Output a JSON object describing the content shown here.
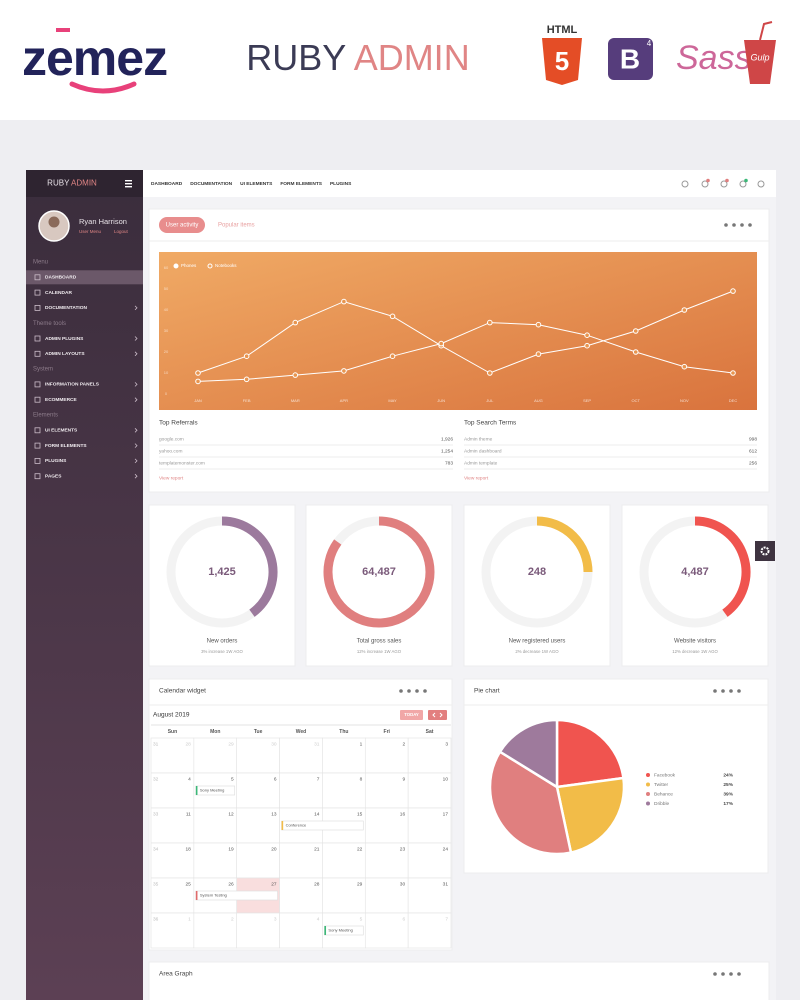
{
  "banner": {
    "logo": "zemez",
    "product_first": "RUBY",
    "product_second": "ADMIN",
    "badges": {
      "html": "HTML",
      "html_version": "5",
      "bootstrap": "B",
      "bootstrap_version": "4",
      "sass": "Sass",
      "gulp": "Gulp"
    }
  },
  "sidebar": {
    "brand_first": "RUBY",
    "brand_second": "ADMIN",
    "user": {
      "name": "Ryan Harrison",
      "links": [
        "User Menu",
        "Logout"
      ]
    },
    "sections": [
      {
        "title": "Menu",
        "items": [
          "DASHBOARD",
          "CALENDAR",
          "DOCUMENTATION"
        ]
      },
      {
        "title": "Theme tools",
        "items": [
          "ADMIN PLUGINS",
          "ADMIN LAYOUTS"
        ]
      },
      {
        "title": "System",
        "items": [
          "INFORMATION PANELS",
          "ECOMMERCE"
        ]
      },
      {
        "title": "Elements",
        "items": [
          "UI ELEMENTS",
          "FORM ELEMENTS",
          "PLUGINS",
          "PAGES"
        ]
      }
    ]
  },
  "topnav": [
    "DASHBOARD",
    "DOCUMENTATION",
    "UI ELEMENTS",
    "FORM ELEMENTS",
    "PLUGINS"
  ],
  "activity": {
    "tabs": [
      "User activity",
      "Popular items"
    ],
    "tables": [
      {
        "title": "Top Referrals",
        "rows": [
          [
            "google.com",
            "1,926"
          ],
          [
            "yahoo.com",
            "1,254"
          ],
          [
            "templatemonster.com",
            "783"
          ]
        ],
        "link": "View report"
      },
      {
        "title": "Top Search Terms",
        "rows": [
          [
            "Admin theme",
            "998"
          ],
          [
            "Admin dashboard",
            "612"
          ],
          [
            "Admin template",
            "256"
          ]
        ],
        "link": "View report"
      }
    ]
  },
  "chart_data": [
    {
      "type": "line",
      "categories": [
        "JAN",
        "FEB",
        "MAR",
        "APR",
        "MAY",
        "JUN",
        "JUL",
        "AUG",
        "SEP",
        "OCT",
        "NOV",
        "DEC"
      ],
      "series": [
        {
          "name": "Phones",
          "color": "#ffffff",
          "values": [
            10,
            18,
            34,
            44,
            37,
            23,
            10,
            19,
            23,
            30,
            40,
            49
          ]
        },
        {
          "name": "Notebooks",
          "color": "#ffffff",
          "values": [
            6,
            7,
            9,
            11,
            18,
            24,
            34,
            33,
            28,
            20,
            13,
            10
          ]
        }
      ],
      "ylim": [
        0,
        70
      ],
      "yticks": [
        0,
        10,
        20,
        30,
        40,
        50,
        60
      ],
      "grid": false
    },
    {
      "type": "pie",
      "title": "Pie chart",
      "categories": [
        "Facebook",
        "Twitter",
        "Behance",
        "Dribble"
      ],
      "values": [
        24,
        25,
        39,
        17
      ],
      "value_labels": [
        "24%",
        "25%",
        "39%",
        "17%"
      ],
      "colors": [
        "#f0544f",
        "#f2bc48",
        "#e07f7f",
        "#9e7a9c"
      ]
    }
  ],
  "stats": [
    {
      "value": "1,425",
      "label": "New orders",
      "note": "3% increase 1W AGO",
      "percent": 40,
      "color": "#9c7a9d"
    },
    {
      "value": "64,487",
      "label": "Total gross sales",
      "note": "12% increase 1W AGO",
      "percent": 85,
      "color": "#e07f7f"
    },
    {
      "value": "248",
      "label": "New registered users",
      "note": "2% decrease 1W AGO",
      "percent": 25,
      "color": "#f2bc48"
    },
    {
      "value": "4,487",
      "label": "Website visitors",
      "note": "12% decrease 1W AGO",
      "percent": 40,
      "color": "#f0544f"
    }
  ],
  "calendar": {
    "title": "Calendar widget",
    "month": "August 2019",
    "today_button": "TODAY",
    "today_date": "27",
    "days": [
      "Sun",
      "Mon",
      "Tue",
      "Wed",
      "Thu",
      "Fri",
      "Sat"
    ],
    "weeks": [
      {
        "number": "31",
        "dates": [
          "28",
          "29",
          "30",
          "31",
          "1",
          "2",
          "3"
        ]
      },
      {
        "number": "32",
        "dates": [
          "4",
          "5",
          "6",
          "7",
          "8",
          "9",
          "10"
        ]
      },
      {
        "number": "33",
        "dates": [
          "11",
          "12",
          "13",
          "14",
          "15",
          "16",
          "17"
        ]
      },
      {
        "number": "34",
        "dates": [
          "18",
          "19",
          "20",
          "21",
          "22",
          "23",
          "24"
        ]
      },
      {
        "number": "35",
        "dates": [
          "25",
          "26",
          "27",
          "28",
          "29",
          "30",
          "31"
        ]
      },
      {
        "number": "36",
        "dates": [
          "1",
          "2",
          "3",
          "4",
          "5",
          "6",
          "7"
        ]
      }
    ],
    "events": [
      {
        "label": "Sony Meeting",
        "week": "32",
        "date": "5",
        "end": "5",
        "color": "#3cb878"
      },
      {
        "label": "Conference",
        "week": "33",
        "date": "14",
        "end": "15",
        "color": "#f2bc48"
      },
      {
        "label": "System Testing",
        "week": "35",
        "date": "26",
        "end": "27",
        "color": "#e06b6b"
      },
      {
        "label": "Sony Meeting",
        "week": "36",
        "date": "5",
        "end": "5",
        "color": "#3cb878"
      }
    ]
  },
  "area_graph": {
    "title": "Area Graph"
  }
}
